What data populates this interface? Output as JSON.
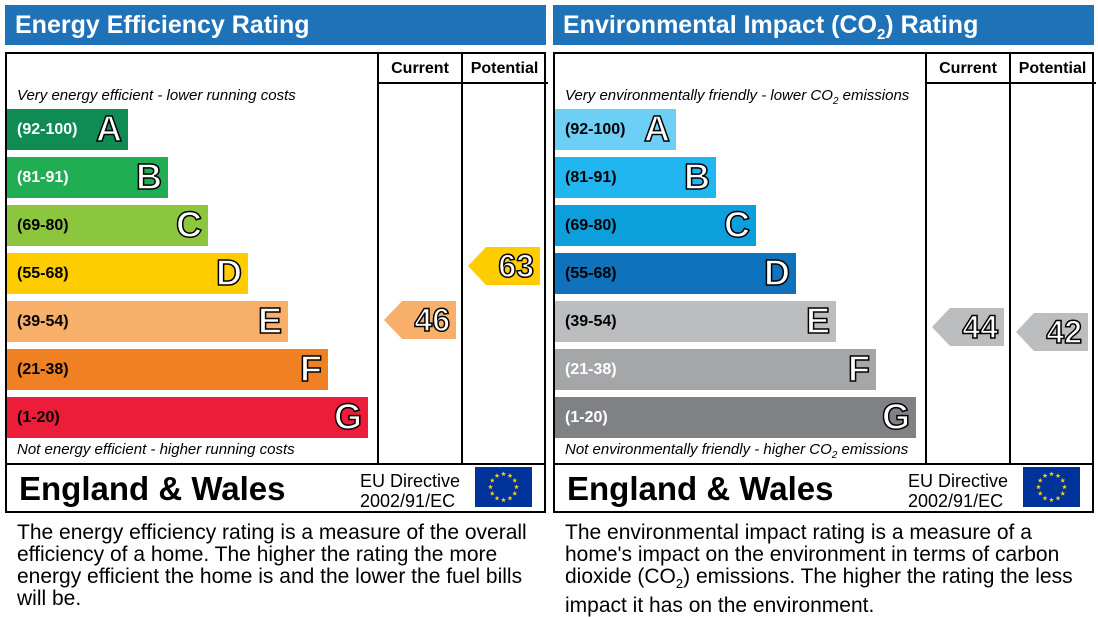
{
  "chart_data": [
    {
      "type": "bar",
      "title": "Energy Efficiency Rating",
      "columns": [
        "Current",
        "Potential"
      ],
      "top_caption": "Very energy efficient - lower running costs",
      "bottom_caption": "Not energy efficient - higher running costs",
      "bands": [
        {
          "range": "(92-100)",
          "letter": "A",
          "color": "#0f8c54",
          "range_color": "#ffffff"
        },
        {
          "range": "(81-91)",
          "letter": "B",
          "color": "#21ae52",
          "range_color": "#ffffff"
        },
        {
          "range": "(69-80)",
          "letter": "C",
          "color": "#8cc63f",
          "range_color": "#000000"
        },
        {
          "range": "(55-68)",
          "letter": "D",
          "color": "#ffcc00",
          "range_color": "#000000"
        },
        {
          "range": "(39-54)",
          "letter": "E",
          "color": "#f7af6a",
          "range_color": "#000000"
        },
        {
          "range": "(21-38)",
          "letter": "F",
          "color": "#f08024",
          "range_color": "#000000"
        },
        {
          "range": "(1-20)",
          "letter": "G",
          "color": "#ed1c39",
          "range_color": "#000000"
        }
      ],
      "current": {
        "value": 46,
        "band": "E",
        "color": "#f7af6a"
      },
      "potential": {
        "value": 63,
        "band": "D",
        "color": "#ffcc00"
      },
      "region": "England & Wales",
      "directive_line1": "EU Directive",
      "directive_line2": "2002/91/EC",
      "description": "The energy efficiency rating is a measure of the overall efficiency of a home. The higher the rating the more energy efficient the home is and the lower the fuel bills will be."
    },
    {
      "type": "bar",
      "title_pre": "Environmental Impact (CO",
      "title_sub": "2",
      "title_post": ") Rating",
      "columns": [
        "Current",
        "Potential"
      ],
      "top_caption_pre": "Very environmentally friendly - lower CO",
      "top_caption_sub": "2",
      "top_caption_post": " emissions",
      "bottom_caption_pre": "Not environmentally friendly - higher CO",
      "bottom_caption_sub": "2",
      "bottom_caption_post": " emissions",
      "bands": [
        {
          "range": "(92-100)",
          "letter": "A",
          "color": "#6ecff6",
          "range_color": "#000000"
        },
        {
          "range": "(81-91)",
          "letter": "B",
          "color": "#22b6f0",
          "range_color": "#000000"
        },
        {
          "range": "(69-80)",
          "letter": "C",
          "color": "#0d9edc",
          "range_color": "#000000"
        },
        {
          "range": "(55-68)",
          "letter": "D",
          "color": "#0e72bd",
          "range_color": "#000000"
        },
        {
          "range": "(39-54)",
          "letter": "E",
          "color": "#bbbdbf",
          "range_color": "#000000"
        },
        {
          "range": "(21-38)",
          "letter": "F",
          "color": "#a5a6a8",
          "range_color": "#ffffff"
        },
        {
          "range": "(1-20)",
          "letter": "G",
          "color": "#808184",
          "range_color": "#ffffff"
        }
      ],
      "current": {
        "value": 44,
        "band": "E",
        "color": "#bbbdbf"
      },
      "potential": {
        "value": 42,
        "band": "E",
        "color": "#bbbdbf"
      },
      "region": "England & Wales",
      "directive_line1": "EU Directive",
      "directive_line2": "2002/91/EC",
      "description_pre": "The environmental impact rating is a measure of a home's impact on the environment in terms of carbon dioxide (CO",
      "description_sub": "2",
      "description_post": ") emissions. The higher the rating the less impact it has on the environment."
    }
  ]
}
